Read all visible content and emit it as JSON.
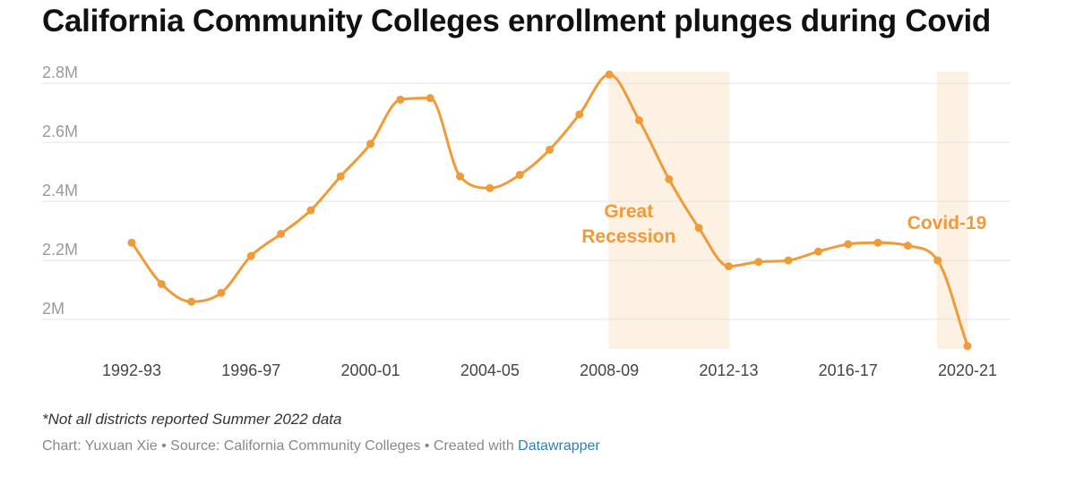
{
  "title": "California Community Colleges enrollment plunges during Covid",
  "footnote": "*Not all districts reported Summer 2022 data",
  "credit": {
    "prefix": "Chart: Yuxuan Xie • Source: California Community Colleges • Created with ",
    "link": "Datawrapper"
  },
  "colors": {
    "line": "#f09a38",
    "band": "#fdf1e4",
    "grid": "#e3e3e3"
  },
  "chart_data": {
    "type": "line",
    "title": "California Community Colleges enrollment plunges during Covid",
    "xlabel": "",
    "ylabel": "",
    "ylim": [
      1.9,
      2.84
    ],
    "grid": true,
    "y_ticks": [
      {
        "value": 2.8,
        "label": "2.8M"
      },
      {
        "value": 2.6,
        "label": "2.6M"
      },
      {
        "value": 2.4,
        "label": "2.4M"
      },
      {
        "value": 2.2,
        "label": "2.2M"
      },
      {
        "value": 2.0,
        "label": "2M"
      }
    ],
    "x": [
      "1992-93",
      "1993-94",
      "1994-95",
      "1995-96",
      "1996-97",
      "1997-98",
      "1998-99",
      "1999-00",
      "2000-01",
      "2001-02",
      "2002-03",
      "2003-04",
      "2004-05",
      "2005-06",
      "2006-07",
      "2007-08",
      "2008-09",
      "2009-10",
      "2010-11",
      "2011-12",
      "2012-13",
      "2013-14",
      "2014-15",
      "2015-16",
      "2016-17",
      "2017-18",
      "2018-19",
      "2019-20",
      "2020-21"
    ],
    "x_tick_labels": [
      "1992-93",
      "1996-97",
      "2000-01",
      "2004-05",
      "2008-09",
      "2012-13",
      "2016-17",
      "2020-21"
    ],
    "series": [
      {
        "values": [
          2.26,
          2.12,
          2.06,
          2.09,
          2.215,
          2.29,
          2.37,
          2.485,
          2.595,
          2.745,
          2.75,
          2.485,
          2.445,
          2.49,
          2.575,
          2.695,
          2.83,
          2.675,
          2.475,
          2.31,
          2.18,
          2.195,
          2.2,
          2.23,
          2.255,
          2.26,
          2.25,
          2.2,
          1.91
        ]
      }
    ],
    "annotations": [
      {
        "lines": [
          "Great",
          "Recession"
        ],
        "start": "2008-09",
        "end": "2012-13"
      },
      {
        "lines": [
          "Covid-19"
        ],
        "start": "2019-20",
        "end": "2020-21"
      }
    ]
  }
}
